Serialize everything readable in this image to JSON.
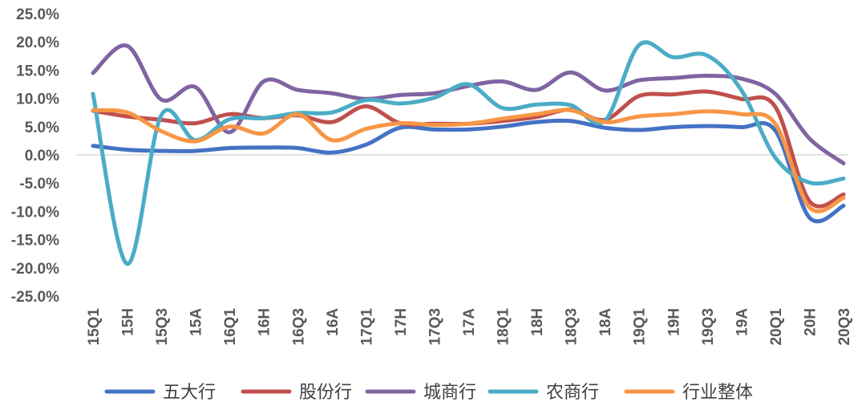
{
  "chart_data": {
    "type": "line",
    "title": "",
    "xlabel": "",
    "ylabel": "",
    "ylim": [
      -25,
      25
    ],
    "y_ticks": [
      25,
      20,
      15,
      10,
      5,
      0,
      -5,
      -10,
      -15,
      -20,
      -25
    ],
    "y_tick_labels": [
      "25.0%",
      "20.0%",
      "15.0%",
      "10.0%",
      "5.0%",
      "0.0%",
      "-5.0%",
      "-10.0%",
      "-15.0%",
      "-20.0%",
      "-25.0%"
    ],
    "categories": [
      "15Q1",
      "15H",
      "15Q3",
      "15A",
      "16Q1",
      "16H",
      "16Q3",
      "16A",
      "17Q1",
      "17H",
      "17Q3",
      "17A",
      "18Q1",
      "18H",
      "18Q3",
      "18A",
      "19Q1",
      "19H",
      "19Q3",
      "19A",
      "20Q1",
      "20H",
      "20Q3"
    ],
    "grid": false,
    "legend_position": "bottom",
    "series": [
      {
        "name": "五大行",
        "color": "#4472C4",
        "values": [
          1.6,
          0.9,
          0.7,
          0.7,
          1.2,
          1.3,
          1.2,
          0.4,
          1.8,
          4.8,
          4.5,
          4.5,
          5.0,
          5.8,
          6.0,
          4.8,
          4.4,
          4.9,
          5.1,
          4.9,
          4.3,
          -11.1,
          -9.0
        ]
      },
      {
        "name": "股份行",
        "color": "#C0504D",
        "values": [
          7.8,
          6.8,
          6.2,
          5.6,
          7.2,
          6.5,
          7.0,
          5.8,
          8.6,
          5.6,
          5.5,
          5.5,
          6.0,
          6.7,
          8.0,
          6.2,
          10.4,
          10.7,
          11.2,
          9.9,
          8.5,
          -8.2,
          -7.0
        ]
      },
      {
        "name": "城商行",
        "color": "#8064A2",
        "values": [
          14.5,
          19.3,
          9.8,
          12.0,
          4.0,
          13.0,
          11.5,
          10.9,
          9.9,
          10.6,
          10.9,
          12.2,
          13.0,
          11.5,
          14.6,
          11.4,
          13.2,
          13.6,
          14.0,
          13.5,
          10.8,
          2.9,
          -1.5
        ]
      },
      {
        "name": "农商行",
        "color": "#4BACC6",
        "values": [
          10.8,
          -19.3,
          7.0,
          2.6,
          6.3,
          6.5,
          7.4,
          7.5,
          9.7,
          9.1,
          10.1,
          12.5,
          8.3,
          8.9,
          8.8,
          6.0,
          19.4,
          17.3,
          17.6,
          11.5,
          -0.5,
          -4.9,
          -4.2
        ]
      },
      {
        "name": "行业整体",
        "color": "#F79646",
        "values": [
          7.9,
          7.5,
          4.2,
          2.4,
          5.0,
          3.8,
          7.2,
          2.6,
          4.6,
          5.6,
          5.3,
          5.5,
          6.4,
          7.2,
          7.9,
          5.8,
          6.8,
          7.2,
          7.7,
          7.2,
          5.5,
          -9.3,
          -7.6
        ]
      }
    ]
  }
}
